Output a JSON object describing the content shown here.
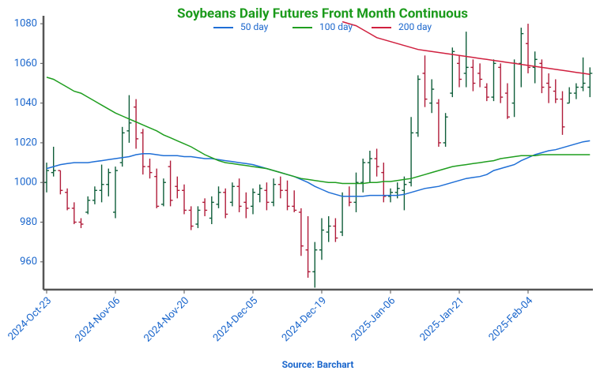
{
  "chart_data": {
    "type": "ohlc",
    "title": "Soybeans Daily Futures Front Month Continuous",
    "source": "Source: Barchart",
    "categories": [
      "2024-Oct-23",
      null,
      null,
      null,
      null,
      null,
      null,
      null,
      null,
      null,
      "2024-Nov-06",
      null,
      null,
      null,
      null,
      null,
      null,
      null,
      null,
      null,
      "2024-Nov-20",
      null,
      null,
      null,
      null,
      null,
      null,
      null,
      null,
      null,
      "2024-Dec-05",
      null,
      null,
      null,
      null,
      null,
      null,
      null,
      null,
      null,
      "2024-Dec-19",
      null,
      null,
      null,
      null,
      null,
      null,
      null,
      null,
      null,
      "2025-Jan-06",
      null,
      null,
      null,
      null,
      null,
      null,
      null,
      null,
      null,
      "2025-Jan-21",
      null,
      null,
      null,
      null,
      null,
      null,
      null,
      null,
      null,
      "2025-Feb-04",
      null,
      null,
      null,
      null,
      null,
      null,
      null,
      null,
      null
    ],
    "ohlc": {
      "up_color": "#0f5e3a",
      "down_color": "#b01c3a",
      "open": [
        1000,
        1005,
        1006,
        995,
        987,
        980,
        985,
        991,
        996,
        999,
        985,
        1010,
        1026,
        1038,
        1025,
        1008,
        1003,
        989,
        1008,
        998,
        996,
        986,
        979,
        990,
        982,
        989,
        995,
        990,
        998,
        990,
        988,
        994,
        996,
        990,
        999,
        996,
        988,
        985,
        966,
        955,
        966,
        975,
        978,
        975,
        993,
        990,
        1000,
        1010,
        1012,
        1005,
        993,
        995,
        996,
        1000,
        1025,
        1055,
        1040,
        1040,
        1020,
        1045,
        1060,
        1055,
        1058,
        1055,
        1048,
        1043,
        1058,
        1045,
        1040,
        1060,
        1070,
        1058,
        1060,
        1050,
        1046,
        1042,
        1040,
        1045,
        1048,
        1048
      ],
      "high": [
        1010,
        1018,
        1006,
        997,
        990,
        982,
        993,
        998,
        1009,
        1007,
        1008,
        1028,
        1044,
        1042,
        1027,
        1012,
        1007,
        1002,
        1011,
        1003,
        999,
        988,
        988,
        992,
        993,
        998,
        997,
        1000,
        1002,
        995,
        997,
        999,
        1000,
        1002,
        1003,
        1001,
        996,
        987,
        983,
        970,
        982,
        983,
        982,
        995,
        998,
        1005,
        1012,
        1016,
        1017,
        1010,
        997,
        1000,
        1003,
        1033,
        1054,
        1064,
        1052,
        1042,
        1035,
        1068,
        1064,
        1076,
        1062,
        1060,
        1050,
        1062,
        1060,
        1050,
        1062,
        1078,
        1080,
        1066,
        1062,
        1055,
        1052,
        1046,
        1048,
        1050,
        1063,
        1058
      ],
      "low": [
        995,
        1003,
        994,
        986,
        979,
        977,
        984,
        989,
        990,
        993,
        982,
        1008,
        1020,
        1017,
        1004,
        1002,
        987,
        988,
        988,
        992,
        984,
        976,
        977,
        983,
        979,
        987,
        982,
        988,
        985,
        982,
        984,
        990,
        986,
        988,
        992,
        986,
        985,
        963,
        952,
        947,
        961,
        970,
        970,
        973,
        988,
        985,
        995,
        1000,
        1003,
        990,
        990,
        992,
        986,
        998,
        1023,
        1038,
        1035,
        1018,
        1018,
        1043,
        1048,
        1048,
        1046,
        1048,
        1041,
        1041,
        1040,
        1032,
        1033,
        1048,
        1055,
        1050,
        1045,
        1040,
        1040,
        1024,
        1040,
        1042,
        1046,
        1043
      ],
      "close": [
        1006,
        1006,
        996,
        987,
        980,
        979,
        991,
        996,
        999,
        1005,
        1006,
        1025,
        1030,
        1022,
        1008,
        1005,
        988,
        1000,
        991,
        996,
        986,
        978,
        986,
        986,
        990,
        995,
        984,
        998,
        988,
        987,
        995,
        997,
        990,
        999,
        996,
        988,
        986,
        968,
        955,
        966,
        976,
        978,
        972,
        993,
        990,
        1000,
        1010,
        1012,
        1008,
        993,
        995,
        997,
        999,
        1025,
        1052,
        1042,
        1047,
        1020,
        1033,
        1066,
        1052,
        1058,
        1050,
        1052,
        1043,
        1060,
        1043,
        1033,
        1060,
        1075,
        1058,
        1062,
        1048,
        1048,
        1042,
        1028,
        1045,
        1048,
        1050,
        1055
      ]
    },
    "series": [
      {
        "name": "50 day",
        "color": "#1f6fd6",
        "values": [
          1007,
          1008,
          1009,
          1009.5,
          1010,
          1010,
          1010,
          1010.5,
          1011,
          1011.5,
          1012,
          1012.5,
          1013,
          1014,
          1014.5,
          1014.5,
          1014,
          1013.5,
          1013.5,
          1013.5,
          1013,
          1013,
          1012.5,
          1012,
          1012,
          1011.5,
          1011,
          1010.5,
          1010,
          1009.5,
          1009,
          1008,
          1007,
          1006,
          1005,
          1004,
          1003,
          1001.5,
          1000,
          998,
          996.5,
          995,
          994,
          993,
          993,
          993,
          993,
          993.5,
          993.5,
          993.5,
          993.5,
          993.5,
          994,
          995,
          996,
          997,
          997.5,
          998,
          999,
          1000,
          1001,
          1002,
          1002.5,
          1003,
          1004,
          1006,
          1007,
          1008,
          1009,
          1011,
          1012.5,
          1014,
          1015,
          1016,
          1016.5,
          1017.5,
          1018.5,
          1019.5,
          1020.5,
          1021
        ]
      },
      {
        "name": "100 day",
        "color": "#1f9e1f",
        "values": [
          1053,
          1052,
          1050,
          1048,
          1046,
          1045,
          1043,
          1041,
          1039,
          1037,
          1035,
          1033.5,
          1032,
          1030.5,
          1029,
          1027.5,
          1026,
          1024,
          1022.5,
          1021,
          1019.5,
          1018,
          1016,
          1014,
          1012.5,
          1011,
          1010,
          1009.5,
          1009,
          1008.5,
          1008,
          1007.5,
          1007,
          1006,
          1005,
          1004,
          1003,
          1002,
          1001.5,
          1001,
          1000.5,
          1000,
          1000,
          999.5,
          999.5,
          999.5,
          999.5,
          1000,
          1000,
          1000.5,
          1000.5,
          1001,
          1001.5,
          1002,
          1003,
          1004,
          1005,
          1006,
          1007,
          1008,
          1008.5,
          1009,
          1009.5,
          1010,
          1010.5,
          1011,
          1012,
          1012.5,
          1013,
          1013.5,
          1013.5,
          1013.5,
          1014,
          1014,
          1014,
          1014,
          1014,
          1014,
          1014,
          1014
        ]
      },
      {
        "name": "200 day",
        "color": "#d0203f",
        "values": [
          null,
          null,
          null,
          null,
          null,
          null,
          null,
          null,
          null,
          null,
          null,
          null,
          null,
          null,
          null,
          null,
          null,
          null,
          null,
          null,
          null,
          null,
          null,
          null,
          null,
          null,
          null,
          null,
          null,
          null,
          null,
          null,
          null,
          null,
          null,
          null,
          null,
          null,
          null,
          null,
          null,
          null,
          null,
          1081,
          1080,
          1079,
          1077,
          1075,
          1073,
          1072,
          1071,
          1070,
          1069,
          1068,
          1067,
          1066.5,
          1066,
          1065.5,
          1065,
          1064.5,
          1064,
          1063.5,
          1063,
          1062.5,
          1062,
          1061.5,
          1061,
          1060.5,
          1060,
          1059.5,
          1059,
          1058.5,
          1058,
          1057.5,
          1057,
          1056.5,
          1056,
          1055.5,
          1055,
          1054.5
        ]
      }
    ],
    "ylim": [
      946,
      1084
    ],
    "yticks": [
      960,
      980,
      1000,
      1020,
      1040,
      1060,
      1080
    ]
  }
}
